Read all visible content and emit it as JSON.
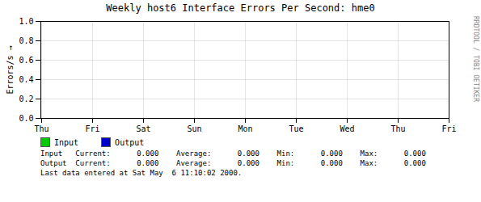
{
  "chart_data": {
    "type": "line",
    "title": "Weekly host6 Interface Errors Per Second: hme0",
    "y_label": "Errors/s",
    "categories": [
      "Thu",
      "Fri",
      "Sat",
      "Sun",
      "Mon",
      "Tue",
      "Wed",
      "Thu",
      "Fri"
    ],
    "series": [
      {
        "name": "Input",
        "color": "#00cc00",
        "values": [
          null,
          null,
          null,
          null,
          null,
          null,
          null,
          null,
          null
        ]
      },
      {
        "name": "Output",
        "color": "#0000cc",
        "values": [
          null,
          null,
          null,
          null,
          null,
          null,
          null,
          null,
          null
        ]
      }
    ],
    "ylim": [
      0.0,
      1.0
    ],
    "yticks": [
      {
        "value": 0.0,
        "label": "0.0"
      },
      0.2,
      0.4,
      0.6,
      0.8,
      {
        "value": 1.0,
        "label": "1.0"
      }
    ],
    "grid": true,
    "legend": "bottom left",
    "annotations": [
      "RRDTOOL / TOBI OETIKER",
      "Input   Current:      0.000    Average:      0.000    Min:      0.000    Max:      0.000",
      "Output  Current:      0.000    Average:      0.000    Min:      0.000    Max:      0.000",
      "Last data entered at Sat May  6 11:10:02 2000."
    ]
  }
}
